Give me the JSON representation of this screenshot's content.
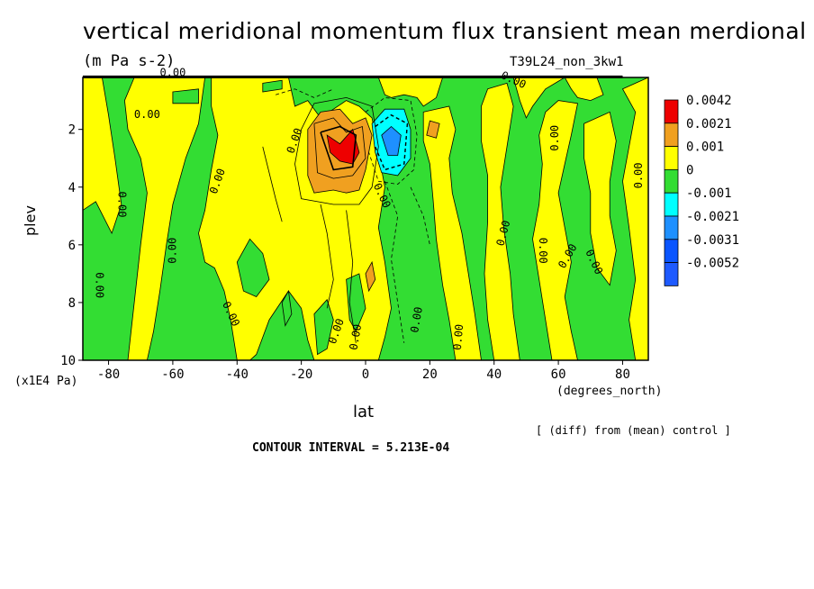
{
  "header": {
    "title": "vertical meridional momentum flux transient mean merdional",
    "units": "(m Pa s-2)",
    "experiment": "T39L24_non_3kw1"
  },
  "footer": {
    "diff_note": "[ (diff) from (mean) control ]",
    "contour_interval": "CONTOUR INTERVAL = 5.213E-04"
  },
  "axes": {
    "x_name": "lat",
    "x_units": "(degrees_north)",
    "y_name": "plev",
    "y_units": "(x1E4 Pa)"
  },
  "contour_label": "0.00",
  "chart_data": {
    "type": "heatmap",
    "title": "vertical meridional momentum flux transient mean merdional",
    "subtitle": "(m Pa s-2)",
    "xlabel": "lat",
    "ylabel": "plev",
    "xlim": [
      -88,
      88
    ],
    "ylim": [
      10,
      0.2
    ],
    "y_inverted": true,
    "x_ticks": [
      -80,
      -60,
      -40,
      -20,
      0,
      20,
      40,
      60,
      80
    ],
    "x_tick_labels": [
      "-80",
      "-60",
      "-40",
      "-20",
      "0",
      "20",
      "40",
      "60",
      "80"
    ],
    "y_ticks": [
      2,
      4,
      6,
      8,
      10
    ],
    "y_tick_labels": [
      "2",
      "4",
      "6",
      "8",
      "10"
    ],
    "legend": {
      "placement": "right",
      "labels": [
        "0.0042",
        "0.0021",
        "0.001",
        "0",
        "-0.001",
        "-0.0021",
        "-0.0031",
        "-0.0052"
      ],
      "colors": [
        "#ee0000",
        "#f0a020",
        "#ffff00",
        "#33dd33",
        "#00ffff",
        "#1e90ff",
        "#0a55ff",
        "#1e5aff"
      ]
    },
    "features": [
      {
        "kind": "positive_max",
        "lat": -8,
        "plev": 2.6,
        "level": "0.0042"
      },
      {
        "kind": "positive",
        "lat": -10,
        "plev": 3.2,
        "level": "0.0021"
      },
      {
        "kind": "negative_min",
        "lat": 8,
        "plev": 2.5,
        "level": "-0.0052"
      },
      {
        "kind": "negative",
        "lat": 7,
        "plev": 3.0,
        "level": "-0.001"
      },
      {
        "kind": "positive",
        "lat": 22,
        "plev": 2.0,
        "level": "0.001"
      }
    ]
  }
}
